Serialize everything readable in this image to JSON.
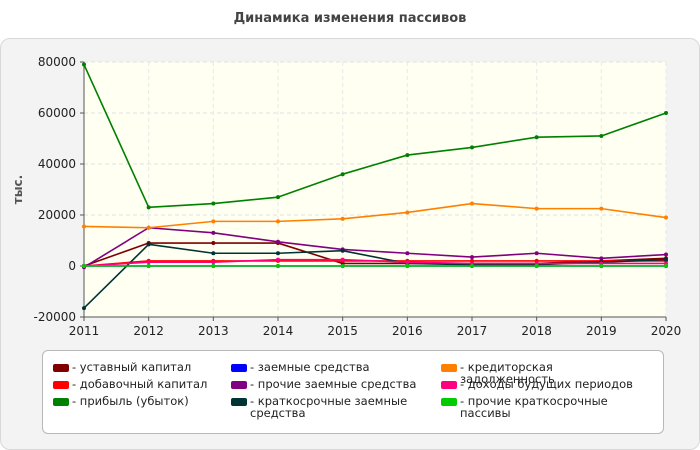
{
  "page_title": "Динамика изменения пассивов",
  "chart_data": {
    "type": "line",
    "title": "Динамика изменения пассивов",
    "xlabel": "",
    "ylabel": "тыс.",
    "categories": [
      "2011",
      "2012",
      "2013",
      "2014",
      "2015",
      "2016",
      "2017",
      "2018",
      "2019",
      "2020"
    ],
    "ylim": [
      -20000,
      80000
    ],
    "yticks": [
      -20000,
      0,
      20000,
      40000,
      60000,
      80000
    ],
    "ytick_labels": [
      "-20000",
      "0",
      "20000",
      "40000",
      "60000",
      "80000"
    ],
    "grid": true,
    "legend_position": "bottom",
    "series": [
      {
        "name": "уставный капитал",
        "color": "#800000",
        "values": [
          0,
          9000,
          9000,
          9000,
          1000,
          1000,
          1000,
          1000,
          2000,
          3000
        ]
      },
      {
        "name": "добавочный капитал",
        "color": "#ff0000",
        "values": [
          0,
          2000,
          2000,
          2000,
          2000,
          2000,
          2000,
          2000,
          2000,
          2000
        ]
      },
      {
        "name": "прибыль (убыток)",
        "color": "#008000",
        "values": [
          79000,
          23000,
          24500,
          27000,
          36000,
          43500,
          46500,
          50500,
          51000,
          60000
        ]
      },
      {
        "name": "заемные средства",
        "color": "#0000ff",
        "values": [
          0,
          0,
          0,
          0,
          0,
          0,
          0,
          0,
          0,
          0
        ]
      },
      {
        "name": "прочие заемные средства",
        "color": "#800080",
        "values": [
          -500,
          15000,
          13000,
          9500,
          6500,
          5000,
          3500,
          5000,
          3000,
          4500
        ]
      },
      {
        "name": "краткосрочные заемные средства",
        "color": "#003333",
        "values": [
          -16500,
          8500,
          5000,
          5000,
          6000,
          1000,
          500,
          500,
          1500,
          2500
        ]
      },
      {
        "name": "кредиторская задолженность",
        "color": "#ff8000",
        "values": [
          15500,
          15000,
          17500,
          17500,
          18500,
          21000,
          24500,
          22500,
          22500,
          19000
        ]
      },
      {
        "name": "доходы будущих периодов",
        "color": "#ff0080",
        "values": [
          0,
          1500,
          1500,
          2500,
          2500,
          1500,
          1000,
          1000,
          1000,
          1000
        ]
      },
      {
        "name": "прочие краткосрочные пассивы",
        "color": "#00cc00",
        "values": [
          0,
          0,
          0,
          0,
          0,
          0,
          0,
          0,
          0,
          0
        ]
      }
    ]
  }
}
